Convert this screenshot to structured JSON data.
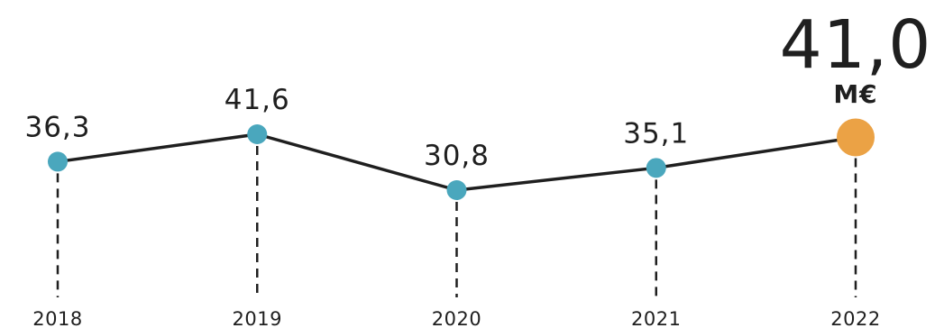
{
  "chart_data": {
    "type": "line",
    "categories": [
      "2018",
      "2019",
      "2020",
      "2021",
      "2022"
    ],
    "values": [
      36.3,
      41.6,
      30.8,
      35.1,
      41.0
    ],
    "labels": [
      "36,3",
      "41,6",
      "30,8",
      "35,1",
      "41,0"
    ],
    "highlight": {
      "index": 4,
      "unit": "M€"
    },
    "colors": {
      "point": "#4aa7bd",
      "highlight": "#eba245",
      "line": "#1f1f1f",
      "guide": "#1f1f1f"
    }
  }
}
